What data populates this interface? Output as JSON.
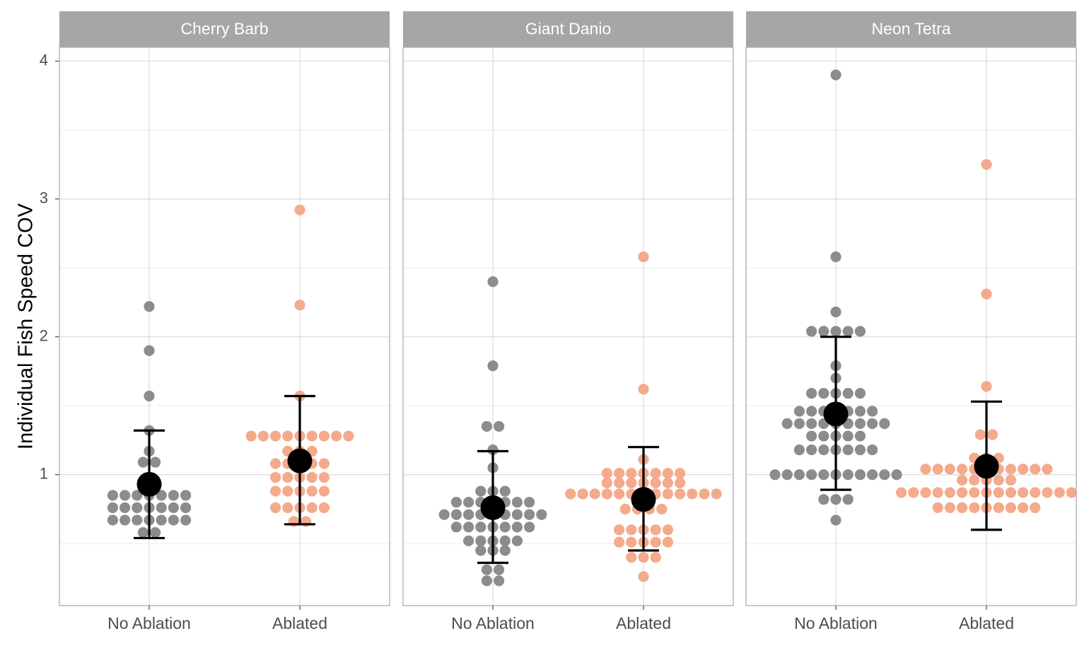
{
  "colors": {
    "no_ablation": "#8c8c8c",
    "ablated": "#f4aa8c",
    "summary": "#000000",
    "strip": "#a6a6a6",
    "grid": "#dedede",
    "border": "#b3b3b3"
  },
  "chart_data": {
    "type": "scatter",
    "subtype": "faceted dot plot with mean and error bars",
    "ylabel": "Individual Fish Speed COV",
    "xlabel": "",
    "ylim": [
      0.05,
      4.1
    ],
    "yticks": [
      "1",
      "2",
      "3",
      "4"
    ],
    "grid": true,
    "legend": "none",
    "categories": [
      "No Ablation",
      "Ablated"
    ],
    "facets": [
      {
        "title": "Cherry Barb",
        "groups": [
          {
            "category": "No Ablation",
            "mean": 0.93,
            "lower": 0.54,
            "upper": 1.32,
            "values": [
              2.22,
              1.9,
              1.57,
              1.32,
              1.17,
              1.09,
              1.09,
              0.85,
              0.85,
              0.85,
              0.85,
              0.85,
              0.85,
              0.85,
              0.76,
              0.76,
              0.76,
              0.76,
              0.76,
              0.76,
              0.76,
              0.67,
              0.67,
              0.67,
              0.67,
              0.67,
              0.67,
              0.67,
              0.58,
              0.58
            ]
          },
          {
            "category": "Ablated",
            "mean": 1.1,
            "lower": 0.64,
            "upper": 1.57,
            "values": [
              2.92,
              2.23,
              1.57,
              1.28,
              1.28,
              1.28,
              1.28,
              1.28,
              1.28,
              1.28,
              1.28,
              1.28,
              1.17,
              1.17,
              1.17,
              1.08,
              1.08,
              1.08,
              1.08,
              1.08,
              0.98,
              0.98,
              0.98,
              0.98,
              0.98,
              0.88,
              0.88,
              0.88,
              0.88,
              0.88,
              0.76,
              0.76,
              0.76,
              0.76,
              0.76,
              0.66,
              0.66
            ]
          }
        ]
      },
      {
        "title": "Giant Danio",
        "groups": [
          {
            "category": "No Ablation",
            "mean": 0.76,
            "lower": 0.36,
            "upper": 1.17,
            "values": [
              2.4,
              1.79,
              1.35,
              1.35,
              1.18,
              1.05,
              0.88,
              0.88,
              0.88,
              0.8,
              0.8,
              0.8,
              0.8,
              0.8,
              0.8,
              0.8,
              0.71,
              0.71,
              0.71,
              0.71,
              0.71,
              0.71,
              0.71,
              0.71,
              0.71,
              0.62,
              0.62,
              0.62,
              0.62,
              0.62,
              0.62,
              0.62,
              0.52,
              0.52,
              0.52,
              0.52,
              0.52,
              0.45,
              0.45,
              0.45,
              0.31,
              0.31,
              0.23,
              0.23
            ]
          },
          {
            "category": "Ablated",
            "mean": 0.82,
            "lower": 0.45,
            "upper": 1.2,
            "values": [
              2.58,
              1.62,
              1.11,
              1.01,
              1.01,
              1.01,
              1.01,
              1.01,
              1.01,
              1.01,
              0.94,
              0.94,
              0.94,
              0.94,
              0.94,
              0.94,
              0.94,
              0.86,
              0.86,
              0.86,
              0.86,
              0.86,
              0.86,
              0.86,
              0.86,
              0.86,
              0.86,
              0.86,
              0.86,
              0.86,
              0.75,
              0.75,
              0.75,
              0.75,
              0.6,
              0.6,
              0.6,
              0.6,
              0.6,
              0.51,
              0.51,
              0.51,
              0.51,
              0.51,
              0.4,
              0.4,
              0.4,
              0.26
            ]
          }
        ]
      },
      {
        "title": "Neon Tetra",
        "groups": [
          {
            "category": "No Ablation",
            "mean": 1.44,
            "lower": 0.89,
            "upper": 2.0,
            "values": [
              3.9,
              2.58,
              2.18,
              2.04,
              2.04,
              2.04,
              2.04,
              2.04,
              1.79,
              1.7,
              1.59,
              1.59,
              1.59,
              1.59,
              1.59,
              1.46,
              1.46,
              1.46,
              1.46,
              1.46,
              1.46,
              1.46,
              1.37,
              1.37,
              1.37,
              1.37,
              1.37,
              1.37,
              1.37,
              1.37,
              1.37,
              1.28,
              1.28,
              1.28,
              1.28,
              1.28,
              1.18,
              1.18,
              1.18,
              1.18,
              1.18,
              1.18,
              1.18,
              1.0,
              1.0,
              1.0,
              1.0,
              1.0,
              1.0,
              1.0,
              1.0,
              1.0,
              1.0,
              1.0,
              0.82,
              0.82,
              0.82,
              0.67
            ]
          },
          {
            "category": "Ablated",
            "mean": 1.06,
            "lower": 0.6,
            "upper": 1.53,
            "values": [
              3.25,
              2.31,
              1.64,
              1.29,
              1.29,
              1.12,
              1.12,
              1.12,
              1.04,
              1.04,
              1.04,
              1.04,
              1.04,
              1.04,
              1.04,
              1.04,
              1.04,
              1.04,
              1.04,
              0.96,
              0.96,
              0.96,
              0.96,
              0.96,
              0.87,
              0.87,
              0.87,
              0.87,
              0.87,
              0.87,
              0.87,
              0.87,
              0.87,
              0.87,
              0.87,
              0.87,
              0.87,
              0.87,
              0.87,
              0.76,
              0.76,
              0.76,
              0.76,
              0.76,
              0.76,
              0.76,
              0.76,
              0.76
            ]
          }
        ]
      }
    ]
  }
}
